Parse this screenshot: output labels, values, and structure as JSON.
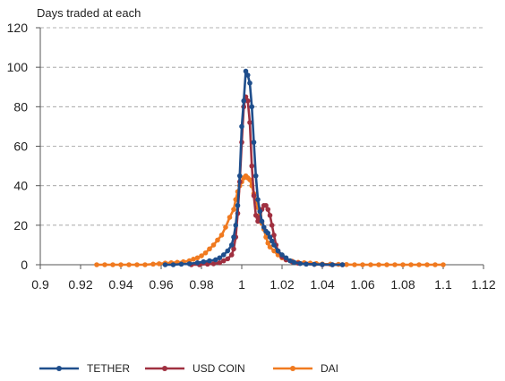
{
  "chart_data": {
    "type": "line",
    "title": "",
    "xlabel": "",
    "ylabel": "Days traded at each",
    "xlim": [
      0.9,
      1.12
    ],
    "ylim": [
      0,
      120
    ],
    "x_ticks": [
      "0.9",
      "0.92",
      "0.94",
      "0.96",
      "0.98",
      "1",
      "1.02",
      "1.04",
      "1.06",
      "1.08",
      "1.1",
      "1.12"
    ],
    "y_ticks": [
      "0",
      "20",
      "40",
      "60",
      "80",
      "100",
      "120"
    ],
    "grid": "horizontal dashed",
    "legend_position": "bottom",
    "series": [
      {
        "name": "TETHER",
        "color": "#1f4e8c",
        "points": [
          [
            0.962,
            0
          ],
          [
            0.966,
            0
          ],
          [
            0.97,
            0.3
          ],
          [
            0.974,
            0.5
          ],
          [
            0.978,
            1
          ],
          [
            0.981,
            1.5
          ],
          [
            0.984,
            2
          ],
          [
            0.987,
            2.5
          ],
          [
            0.989,
            3.5
          ],
          [
            0.991,
            5
          ],
          [
            0.993,
            7
          ],
          [
            0.995,
            10
          ],
          [
            0.996,
            14
          ],
          [
            0.997,
            20
          ],
          [
            0.998,
            30
          ],
          [
            0.999,
            45
          ],
          [
            1.0,
            70
          ],
          [
            1.001,
            83
          ],
          [
            1.002,
            98
          ],
          [
            1.003,
            96
          ],
          [
            1.004,
            92
          ],
          [
            1.005,
            80
          ],
          [
            1.006,
            62
          ],
          [
            1.007,
            45
          ],
          [
            1.008,
            33
          ],
          [
            1.009,
            27
          ],
          [
            1.01,
            22
          ],
          [
            1.011,
            19
          ],
          [
            1.012,
            17
          ],
          [
            1.013,
            16
          ],
          [
            1.014,
            14
          ],
          [
            1.015,
            12
          ],
          [
            1.016,
            10
          ],
          [
            1.018,
            7
          ],
          [
            1.02,
            5
          ],
          [
            1.022,
            3.5
          ],
          [
            1.024,
            2
          ],
          [
            1.026,
            1.2
          ],
          [
            1.029,
            0.6
          ],
          [
            1.032,
            0.3
          ],
          [
            1.036,
            0.2
          ],
          [
            1.04,
            0.1
          ],
          [
            1.045,
            0
          ],
          [
            1.05,
            0
          ]
        ]
      },
      {
        "name": "USD COIN",
        "color": "#a03040",
        "points": [
          [
            0.975,
            0
          ],
          [
            0.979,
            0
          ],
          [
            0.983,
            0.3
          ],
          [
            0.986,
            0.5
          ],
          [
            0.989,
            1
          ],
          [
            0.991,
            2
          ],
          [
            0.993,
            3
          ],
          [
            0.995,
            5
          ],
          [
            0.996,
            8
          ],
          [
            0.997,
            14
          ],
          [
            0.998,
            26
          ],
          [
            0.999,
            42
          ],
          [
            1.0,
            62
          ],
          [
            1.001,
            80
          ],
          [
            1.002,
            85
          ],
          [
            1.003,
            83
          ],
          [
            1.004,
            72
          ],
          [
            1.005,
            50
          ],
          [
            1.006,
            35
          ],
          [
            1.007,
            25
          ],
          [
            1.008,
            22
          ],
          [
            1.009,
            24
          ],
          [
            1.01,
            28
          ],
          [
            1.011,
            30
          ],
          [
            1.012,
            30
          ],
          [
            1.013,
            28
          ],
          [
            1.014,
            25
          ],
          [
            1.015,
            20
          ],
          [
            1.016,
            15
          ],
          [
            1.017,
            10
          ],
          [
            1.018,
            7
          ],
          [
            1.02,
            4
          ],
          [
            1.022,
            2.5
          ],
          [
            1.025,
            1.5
          ],
          [
            1.028,
            0.8
          ],
          [
            1.032,
            0.4
          ],
          [
            1.036,
            0.2
          ],
          [
            1.04,
            0
          ],
          [
            1.045,
            0
          ],
          [
            1.05,
            0
          ]
        ]
      },
      {
        "name": "DAI",
        "color": "#f07a20",
        "points": [
          [
            0.928,
            0
          ],
          [
            0.932,
            0
          ],
          [
            0.936,
            0
          ],
          [
            0.94,
            0
          ],
          [
            0.944,
            0
          ],
          [
            0.948,
            0
          ],
          [
            0.952,
            0
          ],
          [
            0.956,
            0.3
          ],
          [
            0.959,
            0.5
          ],
          [
            0.962,
            0.8
          ],
          [
            0.965,
            1
          ],
          [
            0.968,
            1.2
          ],
          [
            0.971,
            1.5
          ],
          [
            0.974,
            2
          ],
          [
            0.976,
            2.8
          ],
          [
            0.978,
            3.5
          ],
          [
            0.98,
            4.5
          ],
          [
            0.982,
            6
          ],
          [
            0.984,
            8
          ],
          [
            0.986,
            10
          ],
          [
            0.988,
            12.5
          ],
          [
            0.99,
            15
          ],
          [
            0.992,
            19
          ],
          [
            0.994,
            24
          ],
          [
            0.996,
            28
          ],
          [
            0.997,
            33
          ],
          [
            0.998,
            37
          ],
          [
            0.999,
            40
          ],
          [
            1.0,
            42
          ],
          [
            1.001,
            44
          ],
          [
            1.002,
            45
          ],
          [
            1.003,
            44
          ],
          [
            1.004,
            43
          ],
          [
            1.005,
            40
          ],
          [
            1.006,
            36
          ],
          [
            1.007,
            33
          ],
          [
            1.008,
            29
          ],
          [
            1.009,
            25
          ],
          [
            1.01,
            21
          ],
          [
            1.011,
            18
          ],
          [
            1.012,
            14
          ],
          [
            1.013,
            11
          ],
          [
            1.014,
            9
          ],
          [
            1.016,
            7
          ],
          [
            1.018,
            5
          ],
          [
            1.02,
            3.5
          ],
          [
            1.022,
            2.5
          ],
          [
            1.025,
            1.8
          ],
          [
            1.028,
            1.2
          ],
          [
            1.031,
            1
          ],
          [
            1.034,
            0.8
          ],
          [
            1.037,
            0.6
          ],
          [
            1.04,
            0.4
          ],
          [
            1.044,
            0.3
          ],
          [
            1.048,
            0.2
          ],
          [
            1.052,
            0.1
          ],
          [
            1.056,
            0
          ],
          [
            1.06,
            0
          ],
          [
            1.064,
            0
          ],
          [
            1.068,
            0
          ],
          [
            1.072,
            0
          ],
          [
            1.076,
            0
          ],
          [
            1.08,
            0
          ],
          [
            1.084,
            0
          ],
          [
            1.088,
            0
          ],
          [
            1.092,
            0
          ],
          [
            1.096,
            0
          ],
          [
            1.1,
            0
          ]
        ]
      }
    ]
  }
}
